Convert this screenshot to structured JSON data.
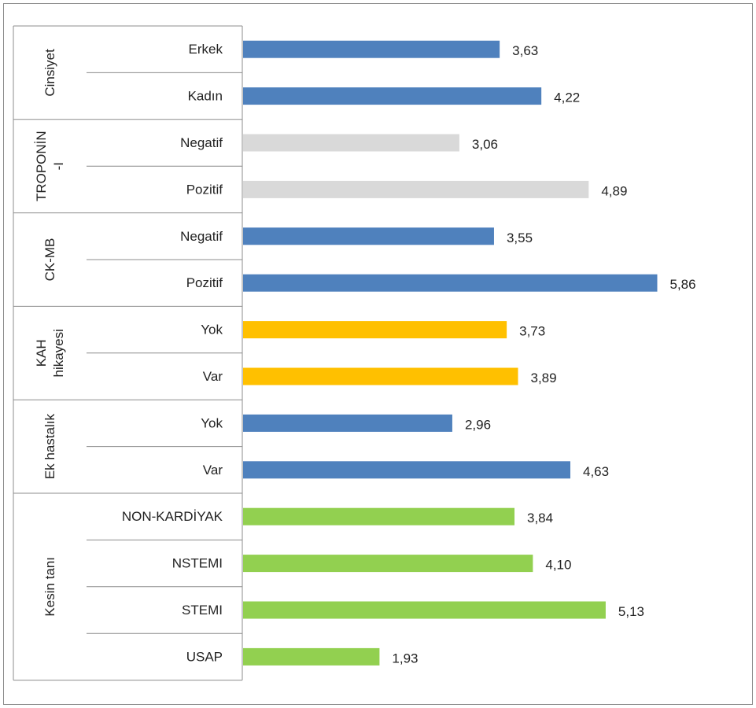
{
  "chart_data": {
    "type": "bar",
    "orientation": "horizontal",
    "groups": [
      {
        "label_lines": [
          "Cinsiyet"
        ],
        "color": "#4f81bd",
        "categories": [
          "Erkek",
          "Kadın"
        ],
        "values": [
          3.63,
          4.22
        ],
        "value_labels": [
          "3,63",
          "4,22"
        ]
      },
      {
        "label_lines": [
          "TROPONİN",
          "-I"
        ],
        "color": "#d9d9d9",
        "categories": [
          "Negatif",
          "Pozitif"
        ],
        "values": [
          3.06,
          4.89
        ],
        "value_labels": [
          "3,06",
          "4,89"
        ]
      },
      {
        "label_lines": [
          "CK-MB"
        ],
        "color": "#4f81bd",
        "categories": [
          "Negatif",
          "Pozitif"
        ],
        "values": [
          3.55,
          5.86
        ],
        "value_labels": [
          "3,55",
          "5,86"
        ]
      },
      {
        "label_lines": [
          "KAH",
          "hikayesi"
        ],
        "color": "#ffc000",
        "categories": [
          "Yok",
          "Var"
        ],
        "values": [
          3.73,
          3.89
        ],
        "value_labels": [
          "3,73",
          "3,89"
        ]
      },
      {
        "label_lines": [
          "Ek hastalık"
        ],
        "color": "#4f81bd",
        "categories": [
          "Yok",
          "Var"
        ],
        "values": [
          2.96,
          4.63
        ],
        "value_labels": [
          "2,96",
          "4,63"
        ]
      },
      {
        "label_lines": [
          "Kesin tanı"
        ],
        "color": "#92d050",
        "categories": [
          "NON-KARDİYAK",
          "NSTEMI",
          "STEMI",
          "USAP"
        ],
        "values": [
          3.84,
          4.1,
          5.13,
          1.93
        ],
        "value_labels": [
          "3,84",
          "4,10",
          "5,13",
          "1,93"
        ]
      }
    ],
    "xlim": [
      0,
      5.86
    ],
    "grid": false,
    "legend": "none"
  }
}
